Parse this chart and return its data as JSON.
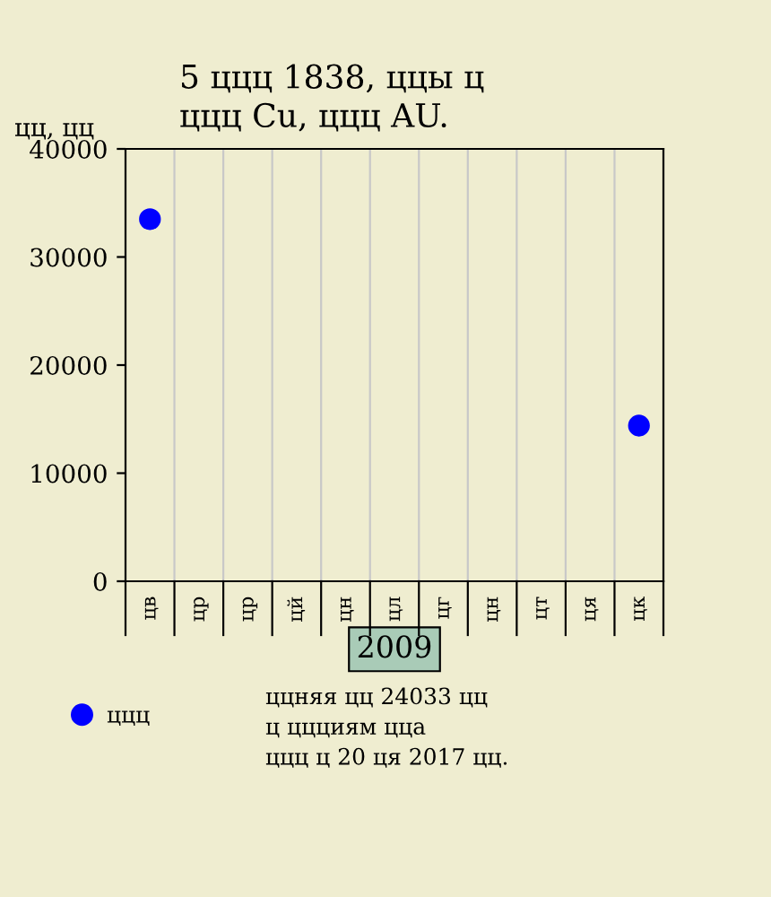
{
  "chart_data": {
    "type": "scatter",
    "title": "5 ццц 1838, ццы ц\nццц Cu, ццц AU.",
    "ylabel": "цц, цц",
    "xlabel": "2009",
    "categories": [
      "цв",
      "цр",
      "цр",
      "цй",
      "цн",
      "цл",
      "цг",
      "цн",
      "цт",
      "ця",
      "цк"
    ],
    "series": [
      {
        "name": "ццц",
        "color": "#0000ff",
        "values": [
          33500,
          null,
          null,
          null,
          null,
          null,
          null,
          null,
          null,
          null,
          14400
        ]
      }
    ],
    "ylim": [
      0,
      40000
    ],
    "yticks": [
      0,
      10000,
      20000,
      30000,
      40000
    ],
    "grid": "x",
    "legend": "bottom left",
    "marker": "circle",
    "annotations": [
      "ццняя цц 24033 цц\nц ццциям ццa\nццц ц 20 ця 2017 цц."
    ]
  }
}
